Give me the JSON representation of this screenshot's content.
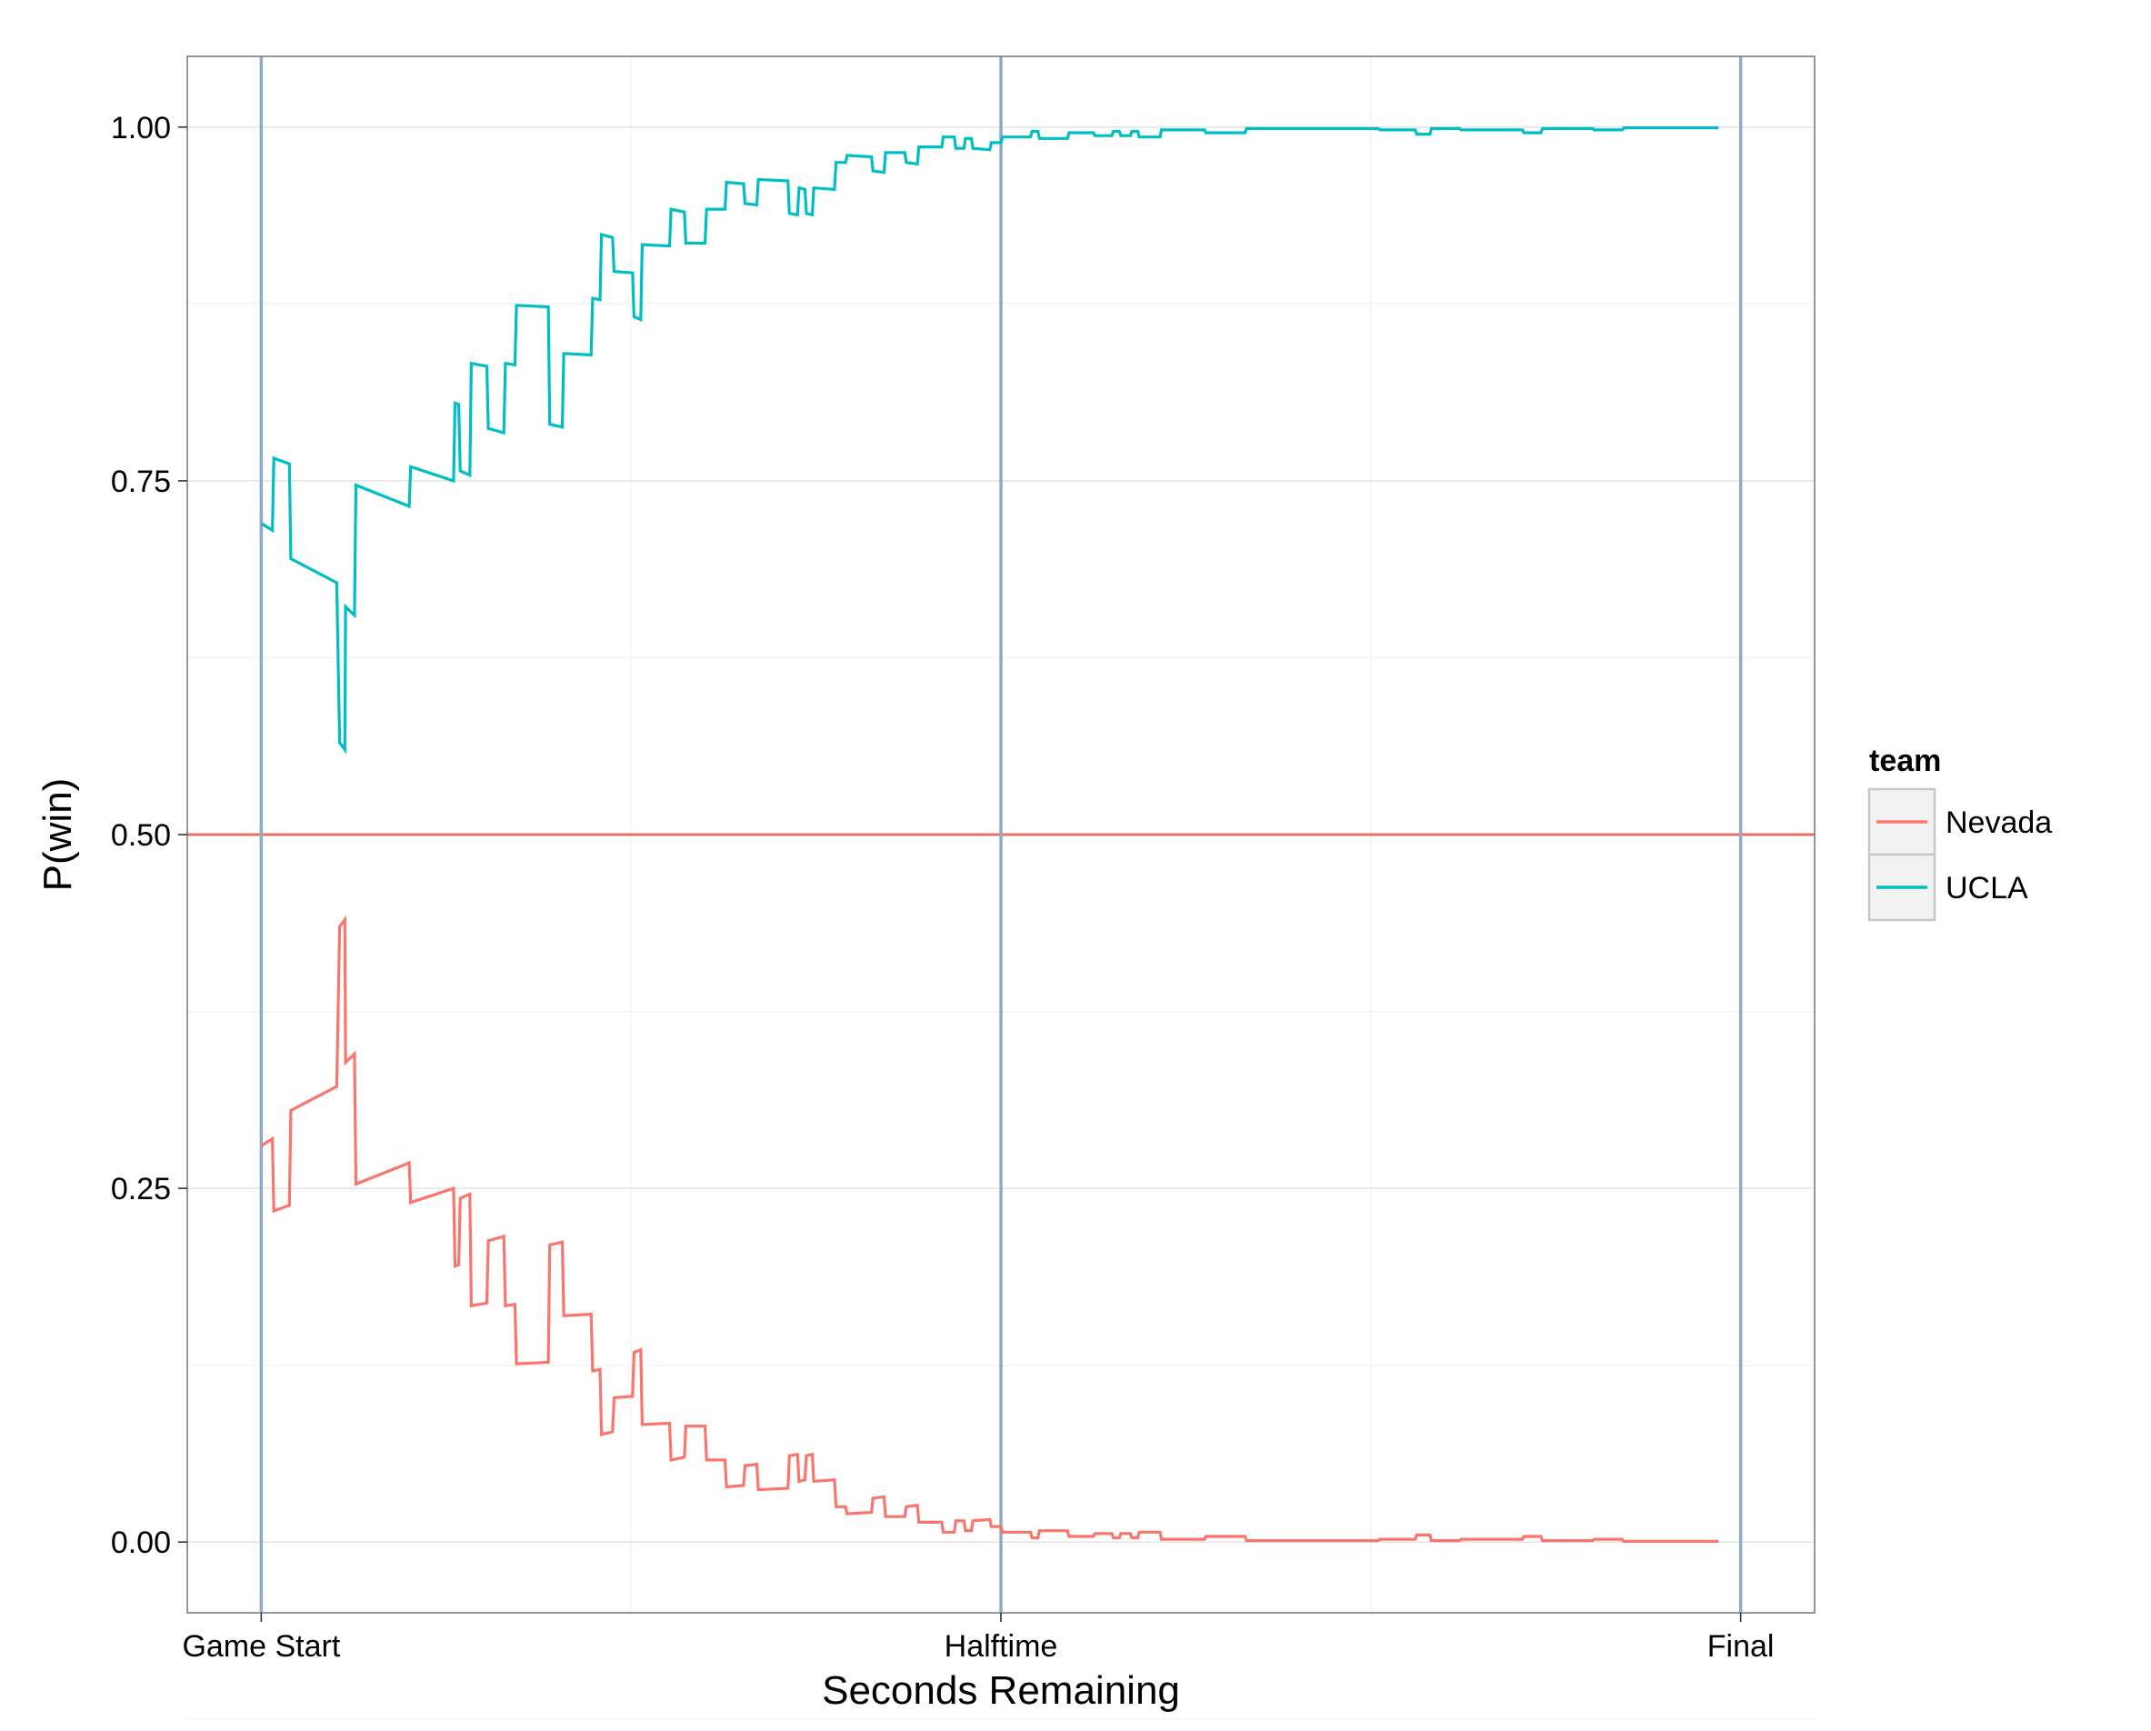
{
  "chart_data": {
    "type": "line",
    "title": "",
    "xlabel": "Seconds Remaining",
    "ylabel": "P(win)",
    "xlim": [
      -0.1,
      2.1
    ],
    "ylim": [
      -0.05,
      1.05
    ],
    "grid": true,
    "legend_position": "right",
    "legend_title": "team",
    "x_ticks": [
      {
        "value": 0,
        "label": "Game Start"
      },
      {
        "value": 1,
        "label": "Halftime"
      },
      {
        "value": 2,
        "label": "Final"
      }
    ],
    "y_ticks": [
      {
        "value": 0.0,
        "label": "0.00"
      },
      {
        "value": 0.25,
        "label": "0.25"
      },
      {
        "value": 0.5,
        "label": "0.50"
      },
      {
        "value": 0.75,
        "label": "0.75"
      },
      {
        "value": 1.0,
        "label": "1.00"
      }
    ],
    "reference_lines": {
      "vertical": [
        0,
        1,
        2
      ],
      "vertical_color": "#8eabc9",
      "horizontal": 0.5,
      "horizontal_color": "#ec6e65"
    },
    "series": [
      {
        "name": "Nevada",
        "color": "#f8766d",
        "points": [
          [
            0.0,
            0.28
          ],
          [
            0.015,
            0.285
          ],
          [
            0.017,
            0.234
          ],
          [
            0.038,
            0.238
          ],
          [
            0.04,
            0.305
          ],
          [
            0.102,
            0.322
          ],
          [
            0.106,
            0.435
          ],
          [
            0.113,
            0.44
          ],
          [
            0.114,
            0.339
          ],
          [
            0.126,
            0.345
          ],
          [
            0.128,
            0.253
          ],
          [
            0.2,
            0.268
          ],
          [
            0.202,
            0.24
          ],
          [
            0.26,
            0.25
          ],
          [
            0.262,
            0.195
          ],
          [
            0.267,
            0.196
          ],
          [
            0.269,
            0.243
          ],
          [
            0.282,
            0.246
          ],
          [
            0.284,
            0.167
          ],
          [
            0.305,
            0.169
          ],
          [
            0.307,
            0.213
          ],
          [
            0.328,
            0.216
          ],
          [
            0.33,
            0.167
          ],
          [
            0.343,
            0.168
          ],
          [
            0.345,
            0.126
          ],
          [
            0.388,
            0.127
          ],
          [
            0.39,
            0.21
          ],
          [
            0.407,
            0.212
          ],
          [
            0.409,
            0.16
          ],
          [
            0.446,
            0.161
          ],
          [
            0.448,
            0.121
          ],
          [
            0.458,
            0.122
          ],
          [
            0.46,
            0.076
          ],
          [
            0.475,
            0.078
          ],
          [
            0.477,
            0.102
          ],
          [
            0.502,
            0.103
          ],
          [
            0.504,
            0.134
          ],
          [
            0.513,
            0.136
          ],
          [
            0.515,
            0.083
          ],
          [
            0.552,
            0.084
          ],
          [
            0.554,
            0.058
          ],
          [
            0.572,
            0.06
          ],
          [
            0.574,
            0.082
          ],
          [
            0.6,
            0.082
          ],
          [
            0.602,
            0.058
          ],
          [
            0.627,
            0.058
          ],
          [
            0.629,
            0.039
          ],
          [
            0.652,
            0.04
          ],
          [
            0.654,
            0.054
          ],
          [
            0.67,
            0.055
          ],
          [
            0.672,
            0.037
          ],
          [
            0.712,
            0.038
          ],
          [
            0.714,
            0.061
          ],
          [
            0.725,
            0.062
          ],
          [
            0.727,
            0.043
          ],
          [
            0.735,
            0.044
          ],
          [
            0.737,
            0.061
          ],
          [
            0.745,
            0.062
          ],
          [
            0.747,
            0.043
          ],
          [
            0.775,
            0.044
          ],
          [
            0.777,
            0.025
          ],
          [
            0.79,
            0.025
          ],
          [
            0.792,
            0.02
          ],
          [
            0.825,
            0.021
          ],
          [
            0.827,
            0.031
          ],
          [
            0.842,
            0.032
          ],
          [
            0.844,
            0.018
          ],
          [
            0.87,
            0.018
          ],
          [
            0.872,
            0.025
          ],
          [
            0.887,
            0.026
          ],
          [
            0.889,
            0.014
          ],
          [
            0.92,
            0.014
          ],
          [
            0.922,
            0.007
          ],
          [
            0.937,
            0.007
          ],
          [
            0.939,
            0.015
          ],
          [
            0.95,
            0.015
          ],
          [
            0.952,
            0.008
          ],
          [
            0.96,
            0.008
          ],
          [
            0.962,
            0.015
          ],
          [
            0.985,
            0.016
          ],
          [
            0.987,
            0.011
          ],
          [
            1.0,
            0.011
          ],
          [
            1.002,
            0.007
          ],
          [
            1.04,
            0.007
          ],
          [
            1.042,
            0.003
          ],
          [
            1.05,
            0.003
          ],
          [
            1.052,
            0.008
          ],
          [
            1.09,
            0.008
          ],
          [
            1.092,
            0.004
          ],
          [
            1.125,
            0.004
          ],
          [
            1.127,
            0.006
          ],
          [
            1.15,
            0.006
          ],
          [
            1.152,
            0.003
          ],
          [
            1.16,
            0.003
          ],
          [
            1.162,
            0.006
          ],
          [
            1.175,
            0.006
          ],
          [
            1.177,
            0.003
          ],
          [
            1.185,
            0.003
          ],
          [
            1.187,
            0.007
          ],
          [
            1.215,
            0.007
          ],
          [
            1.217,
            0.002
          ],
          [
            1.275,
            0.002
          ],
          [
            1.277,
            0.004
          ],
          [
            1.33,
            0.004
          ],
          [
            1.332,
            0.001
          ],
          [
            1.43,
            0.001
          ],
          [
            1.432,
            0.001
          ],
          [
            1.51,
            0.001
          ],
          [
            1.512,
            0.002
          ],
          [
            1.56,
            0.002
          ],
          [
            1.562,
            0.005
          ],
          [
            1.58,
            0.005
          ],
          [
            1.582,
            0.001
          ],
          [
            1.62,
            0.001
          ],
          [
            1.622,
            0.002
          ],
          [
            1.705,
            0.002
          ],
          [
            1.707,
            0.004
          ],
          [
            1.73,
            0.004
          ],
          [
            1.732,
            0.001
          ],
          [
            1.8,
            0.001
          ],
          [
            1.802,
            0.002
          ],
          [
            1.84,
            0.002
          ],
          [
            1.842,
            0.0005
          ],
          [
            1.97,
            0.0005
          ]
        ]
      },
      {
        "name": "UCLA",
        "color": "#00bfc4",
        "points": [
          [
            0.0,
            0.72
          ],
          [
            0.015,
            0.715
          ],
          [
            0.017,
            0.766
          ],
          [
            0.038,
            0.762
          ],
          [
            0.04,
            0.695
          ],
          [
            0.102,
            0.678
          ],
          [
            0.106,
            0.565
          ],
          [
            0.113,
            0.56
          ],
          [
            0.114,
            0.661
          ],
          [
            0.126,
            0.655
          ],
          [
            0.128,
            0.747
          ],
          [
            0.2,
            0.732
          ],
          [
            0.202,
            0.76
          ],
          [
            0.26,
            0.75
          ],
          [
            0.262,
            0.805
          ],
          [
            0.267,
            0.804
          ],
          [
            0.269,
            0.757
          ],
          [
            0.282,
            0.754
          ],
          [
            0.284,
            0.833
          ],
          [
            0.305,
            0.831
          ],
          [
            0.307,
            0.787
          ],
          [
            0.328,
            0.784
          ],
          [
            0.33,
            0.833
          ],
          [
            0.343,
            0.832
          ],
          [
            0.345,
            0.874
          ],
          [
            0.388,
            0.873
          ],
          [
            0.39,
            0.79
          ],
          [
            0.407,
            0.788
          ],
          [
            0.409,
            0.84
          ],
          [
            0.446,
            0.839
          ],
          [
            0.448,
            0.879
          ],
          [
            0.458,
            0.878
          ],
          [
            0.46,
            0.924
          ],
          [
            0.475,
            0.922
          ],
          [
            0.477,
            0.898
          ],
          [
            0.502,
            0.897
          ],
          [
            0.504,
            0.866
          ],
          [
            0.513,
            0.864
          ],
          [
            0.515,
            0.917
          ],
          [
            0.552,
            0.916
          ],
          [
            0.554,
            0.942
          ],
          [
            0.572,
            0.94
          ],
          [
            0.574,
            0.918
          ],
          [
            0.6,
            0.918
          ],
          [
            0.602,
            0.942
          ],
          [
            0.627,
            0.942
          ],
          [
            0.629,
            0.961
          ],
          [
            0.652,
            0.96
          ],
          [
            0.654,
            0.946
          ],
          [
            0.67,
            0.945
          ],
          [
            0.672,
            0.963
          ],
          [
            0.712,
            0.962
          ],
          [
            0.714,
            0.939
          ],
          [
            0.725,
            0.938
          ],
          [
            0.727,
            0.957
          ],
          [
            0.735,
            0.956
          ],
          [
            0.737,
            0.939
          ],
          [
            0.745,
            0.938
          ],
          [
            0.747,
            0.957
          ],
          [
            0.775,
            0.956
          ],
          [
            0.777,
            0.975
          ],
          [
            0.79,
            0.975
          ],
          [
            0.792,
            0.98
          ],
          [
            0.825,
            0.979
          ],
          [
            0.827,
            0.969
          ],
          [
            0.842,
            0.968
          ],
          [
            0.844,
            0.982
          ],
          [
            0.87,
            0.982
          ],
          [
            0.872,
            0.975
          ],
          [
            0.887,
            0.974
          ],
          [
            0.889,
            0.986
          ],
          [
            0.92,
            0.986
          ],
          [
            0.922,
            0.993
          ],
          [
            0.937,
            0.993
          ],
          [
            0.939,
            0.985
          ],
          [
            0.95,
            0.985
          ],
          [
            0.952,
            0.992
          ],
          [
            0.96,
            0.992
          ],
          [
            0.962,
            0.985
          ],
          [
            0.985,
            0.984
          ],
          [
            0.987,
            0.989
          ],
          [
            1.0,
            0.989
          ],
          [
            1.002,
            0.993
          ],
          [
            1.04,
            0.993
          ],
          [
            1.042,
            0.997
          ],
          [
            1.05,
            0.997
          ],
          [
            1.052,
            0.992
          ],
          [
            1.09,
            0.992
          ],
          [
            1.092,
            0.996
          ],
          [
            1.125,
            0.996
          ],
          [
            1.127,
            0.994
          ],
          [
            1.15,
            0.994
          ],
          [
            1.152,
            0.997
          ],
          [
            1.16,
            0.997
          ],
          [
            1.162,
            0.994
          ],
          [
            1.175,
            0.994
          ],
          [
            1.177,
            0.997
          ],
          [
            1.185,
            0.997
          ],
          [
            1.187,
            0.993
          ],
          [
            1.215,
            0.993
          ],
          [
            1.217,
            0.998
          ],
          [
            1.275,
            0.998
          ],
          [
            1.277,
            0.996
          ],
          [
            1.33,
            0.996
          ],
          [
            1.332,
            0.999
          ],
          [
            1.43,
            0.999
          ],
          [
            1.432,
            0.999
          ],
          [
            1.51,
            0.999
          ],
          [
            1.512,
            0.998
          ],
          [
            1.56,
            0.998
          ],
          [
            1.562,
            0.995
          ],
          [
            1.58,
            0.995
          ],
          [
            1.582,
            0.999
          ],
          [
            1.62,
            0.999
          ],
          [
            1.622,
            0.998
          ],
          [
            1.705,
            0.998
          ],
          [
            1.707,
            0.996
          ],
          [
            1.73,
            0.996
          ],
          [
            1.732,
            0.999
          ],
          [
            1.8,
            0.999
          ],
          [
            1.802,
            0.998
          ],
          [
            1.84,
            0.998
          ],
          [
            1.842,
            0.9995
          ],
          [
            1.97,
            0.9995
          ]
        ]
      }
    ]
  }
}
